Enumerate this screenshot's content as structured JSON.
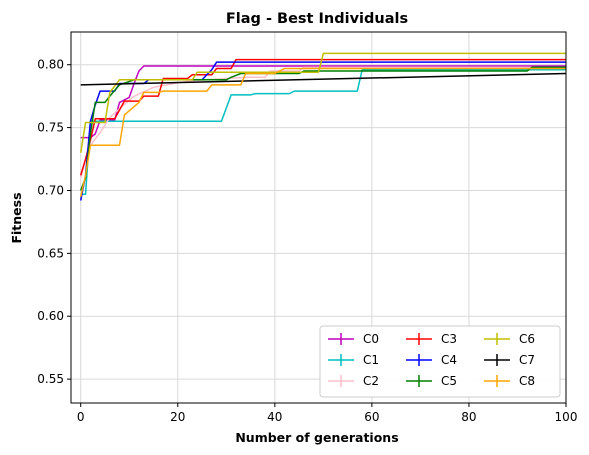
{
  "chart_data": {
    "type": "line",
    "title": "Flag - Best Individuals",
    "xlabel": "Number of generations",
    "ylabel": "Fitness",
    "xlim": [
      -2,
      100
    ],
    "ylim": [
      0.531,
      0.826
    ],
    "xticks": [
      0,
      20,
      40,
      60,
      80,
      100
    ],
    "yticks": [
      0.55,
      0.6,
      0.65,
      0.7,
      0.75,
      0.8
    ],
    "grid": true,
    "legend_position": "lower-right",
    "legend_columns": 3,
    "series": [
      {
        "name": "C0",
        "color": "#bf00bf",
        "points": [
          [
            0,
            0.742
          ],
          [
            2,
            0.742
          ],
          [
            3,
            0.745
          ],
          [
            4,
            0.756
          ],
          [
            7,
            0.756
          ],
          [
            8,
            0.77
          ],
          [
            10,
            0.774
          ],
          [
            11,
            0.785
          ],
          [
            12,
            0.795
          ],
          [
            13,
            0.799
          ],
          [
            100,
            0.799
          ]
        ]
      },
      {
        "name": "C1",
        "color": "#00bfbf",
        "points": [
          [
            0,
            0.697
          ],
          [
            1,
            0.697
          ],
          [
            2,
            0.755
          ],
          [
            29,
            0.755
          ],
          [
            31,
            0.776
          ],
          [
            35,
            0.776
          ],
          [
            36,
            0.777
          ],
          [
            43,
            0.777
          ],
          [
            44,
            0.779
          ],
          [
            57,
            0.779
          ],
          [
            58,
            0.796
          ],
          [
            100,
            0.796
          ]
        ]
      },
      {
        "name": "C2",
        "color": "#ffc0cb",
        "points": [
          [
            0,
            0.71
          ],
          [
            1,
            0.725
          ],
          [
            2,
            0.736
          ],
          [
            4,
            0.746
          ],
          [
            6,
            0.758
          ],
          [
            8,
            0.765
          ],
          [
            11,
            0.775
          ],
          [
            15,
            0.782
          ],
          [
            22,
            0.787
          ],
          [
            34,
            0.79
          ],
          [
            38,
            0.79
          ],
          [
            39,
            0.795
          ],
          [
            45,
            0.795
          ],
          [
            46,
            0.798
          ],
          [
            100,
            0.798
          ]
        ]
      },
      {
        "name": "C3",
        "color": "#ff0000",
        "points": [
          [
            0,
            0.712
          ],
          [
            1,
            0.725
          ],
          [
            2,
            0.74
          ],
          [
            3,
            0.757
          ],
          [
            7,
            0.757
          ],
          [
            8,
            0.764
          ],
          [
            9,
            0.771
          ],
          [
            12,
            0.771
          ],
          [
            13,
            0.775
          ],
          [
            16,
            0.775
          ],
          [
            17,
            0.789
          ],
          [
            22,
            0.789
          ],
          [
            23,
            0.792
          ],
          [
            27,
            0.792
          ],
          [
            28,
            0.797
          ],
          [
            31,
            0.797
          ],
          [
            32,
            0.804
          ],
          [
            100,
            0.804
          ]
        ]
      },
      {
        "name": "C4",
        "color": "#0000ff",
        "points": [
          [
            0,
            0.692
          ],
          [
            1,
            0.712
          ],
          [
            2,
            0.755
          ],
          [
            3,
            0.768
          ],
          [
            4,
            0.779
          ],
          [
            7,
            0.779
          ],
          [
            8,
            0.785
          ],
          [
            13,
            0.785
          ],
          [
            14,
            0.788
          ],
          [
            25,
            0.788
          ],
          [
            27,
            0.796
          ],
          [
            28,
            0.802
          ],
          [
            100,
            0.802
          ]
        ]
      },
      {
        "name": "C5",
        "color": "#008000",
        "points": [
          [
            0,
            0.7
          ],
          [
            1,
            0.71
          ],
          [
            2,
            0.745
          ],
          [
            3,
            0.77
          ],
          [
            5,
            0.77
          ],
          [
            6,
            0.775
          ],
          [
            8,
            0.784
          ],
          [
            11,
            0.788
          ],
          [
            30,
            0.788
          ],
          [
            31,
            0.79
          ],
          [
            33,
            0.793
          ],
          [
            45,
            0.793
          ],
          [
            46,
            0.795
          ],
          [
            92,
            0.795
          ],
          [
            93,
            0.798
          ],
          [
            100,
            0.798
          ]
        ]
      },
      {
        "name": "C6",
        "color": "#bfbf00",
        "points": [
          [
            0,
            0.73
          ],
          [
            1,
            0.754
          ],
          [
            5,
            0.754
          ],
          [
            6,
            0.778
          ],
          [
            8,
            0.788
          ],
          [
            23,
            0.788
          ],
          [
            24,
            0.794
          ],
          [
            49,
            0.794
          ],
          [
            50,
            0.809
          ],
          [
            100,
            0.809
          ]
        ]
      },
      {
        "name": "C7",
        "color": "#000000",
        "points": [
          [
            0,
            0.784
          ],
          [
            100,
            0.793
          ]
        ]
      },
      {
        "name": "C8",
        "color": "#ffa500",
        "points": [
          [
            0,
            0.695
          ],
          [
            1,
            0.712
          ],
          [
            2,
            0.736
          ],
          [
            8,
            0.736
          ],
          [
            9,
            0.76
          ],
          [
            12,
            0.77
          ],
          [
            13,
            0.778
          ],
          [
            16,
            0.778
          ],
          [
            17,
            0.779
          ],
          [
            26,
            0.779
          ],
          [
            27,
            0.784
          ],
          [
            33,
            0.784
          ],
          [
            34,
            0.793
          ],
          [
            40,
            0.793
          ],
          [
            42,
            0.797
          ],
          [
            100,
            0.797
          ]
        ]
      }
    ]
  }
}
